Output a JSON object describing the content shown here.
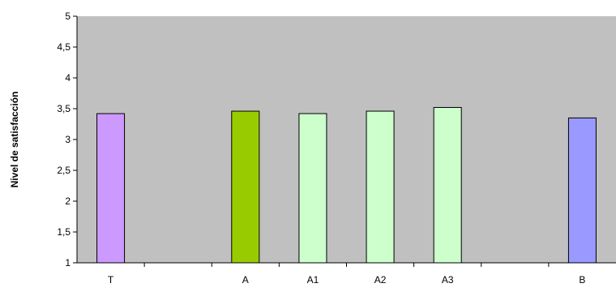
{
  "chart_data": {
    "type": "bar",
    "title": "",
    "xlabel": "",
    "ylabel": "Nivel de satisfacción",
    "ylim": [
      1,
      5
    ],
    "ytick_labels": [
      "1",
      "1,5",
      "2",
      "2,5",
      "3",
      "3,5",
      "4",
      "4,5",
      "5"
    ],
    "categories": [
      "T",
      "",
      "A",
      "A1",
      "A2",
      "A3",
      "",
      "B"
    ],
    "values": [
      3.42,
      null,
      3.46,
      3.42,
      3.46,
      3.52,
      null,
      3.35
    ],
    "bar_colors": [
      "#cc99ff",
      null,
      "#99cc00",
      "#ccffcc",
      "#ccffcc",
      "#ccffcc",
      null,
      "#9999ff"
    ],
    "plot_background": "#c0c0c0",
    "grid": false,
    "legend": "none"
  }
}
